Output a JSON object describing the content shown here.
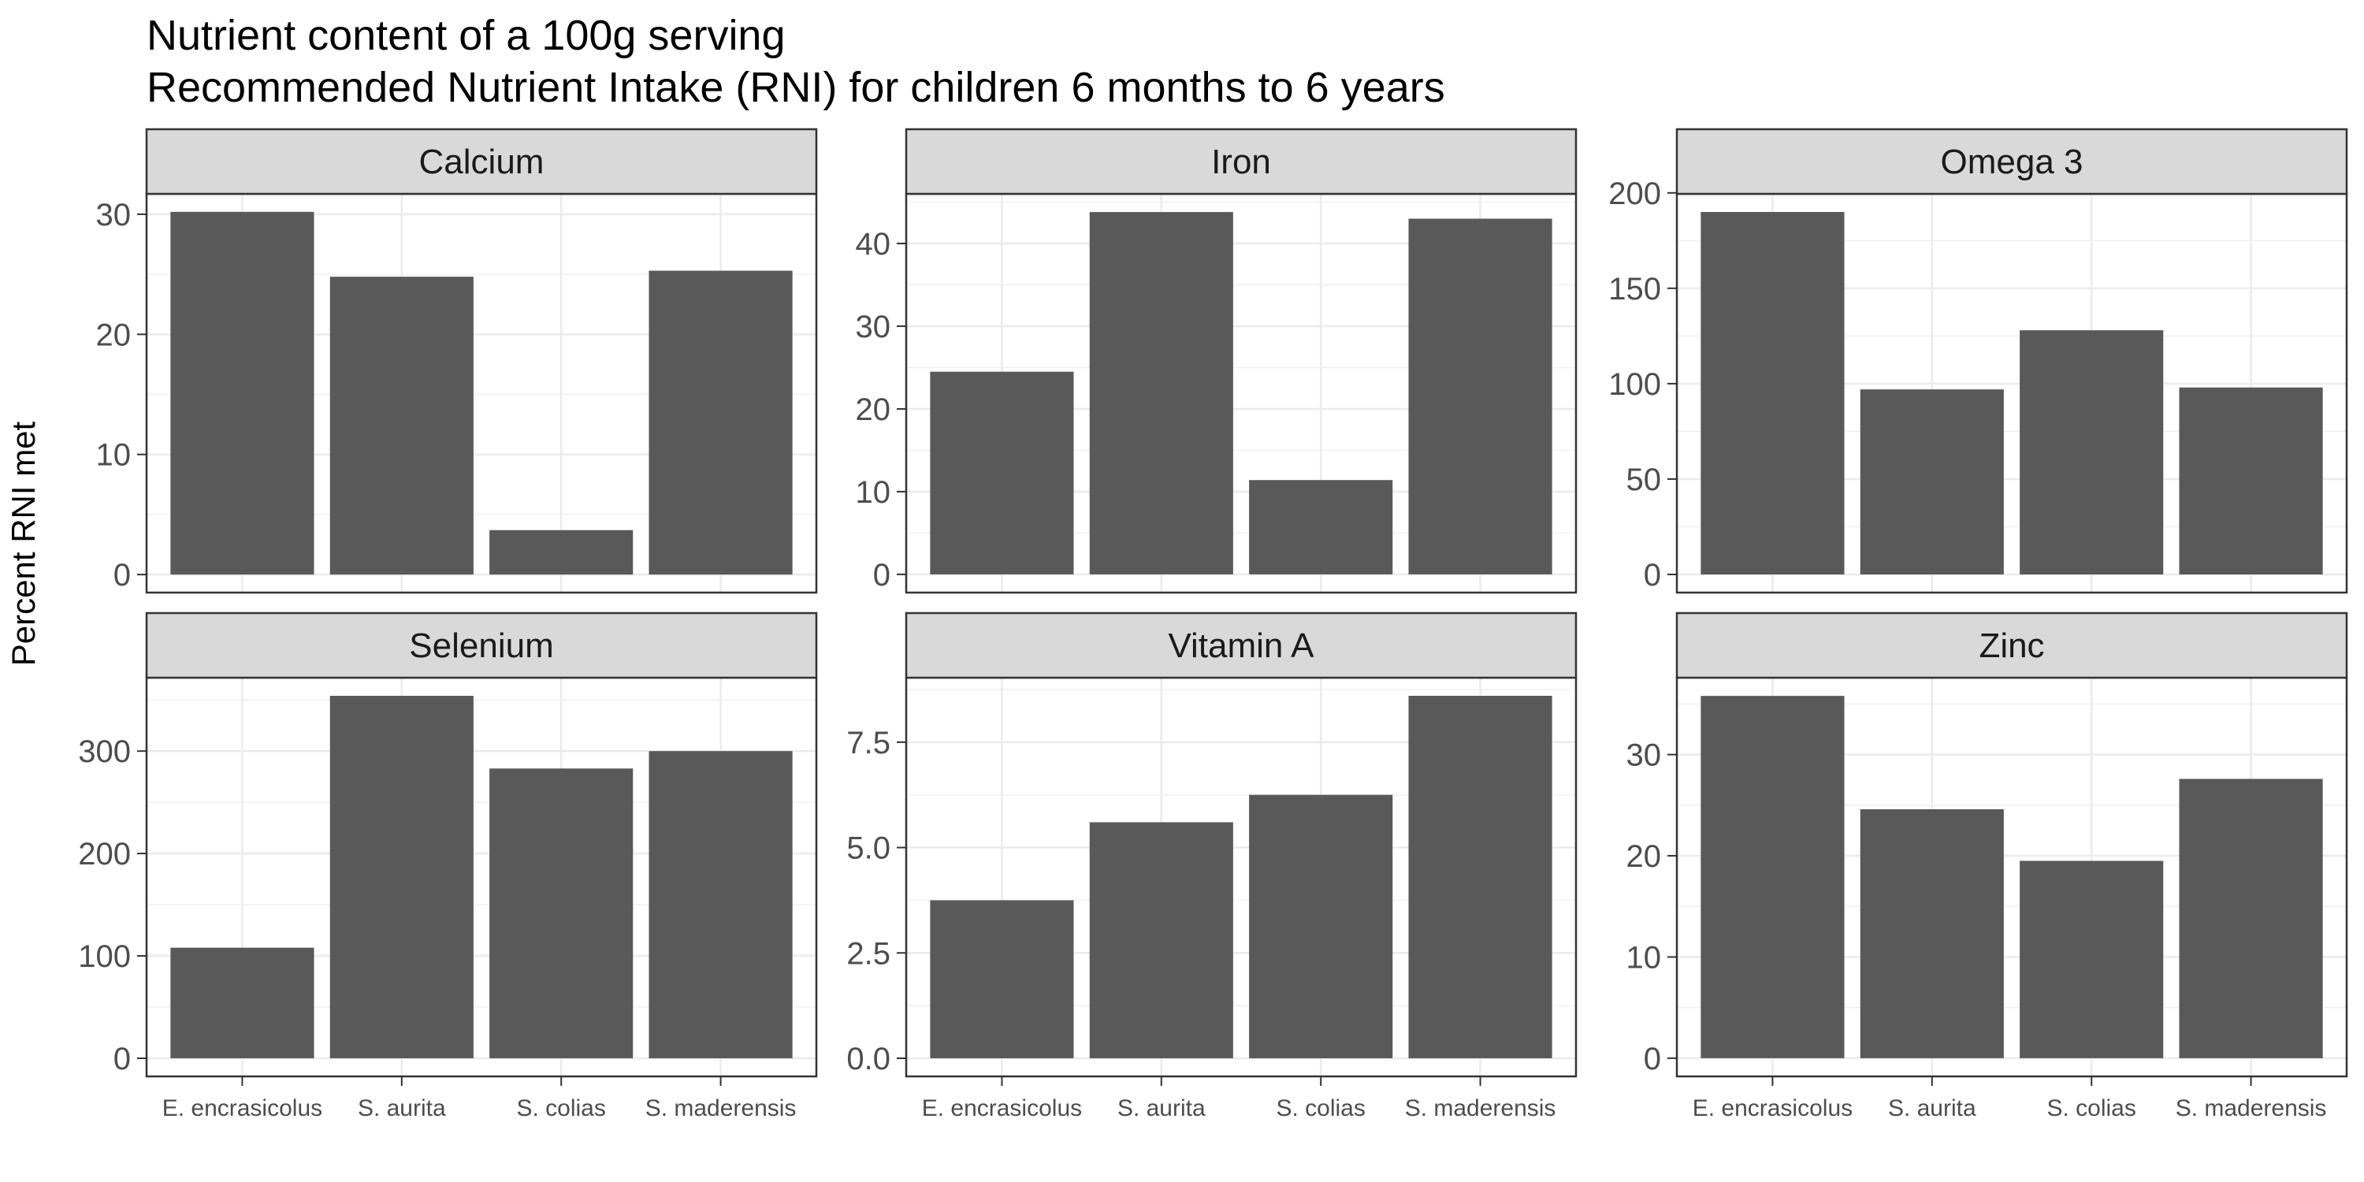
{
  "title_lines": [
    "Nutrient content of a 100g serving",
    "Recommended Nutrient Intake (RNI) for children 6 months to 6 years"
  ],
  "chart_data": {
    "type": "bar",
    "ylabel": "Percent RNI met",
    "categories": [
      "E. encrasicolus",
      "S. aurita",
      "S. colias",
      "S. maderensis"
    ],
    "bar_color": "#595959",
    "strip_color": "#d9d9d9",
    "grid": true,
    "facets": [
      {
        "name": "Calcium",
        "values": [
          30.2,
          24.8,
          3.7,
          25.3
        ],
        "ylim": [
          -1.5,
          31.7
        ],
        "ticks": [
          0,
          10,
          20,
          30
        ],
        "tick_labels": [
          "0",
          "10",
          "20",
          "30"
        ]
      },
      {
        "name": "Iron",
        "values": [
          24.5,
          43.8,
          11.4,
          43.0
        ],
        "ylim": [
          -2.2,
          46.0
        ],
        "ticks": [
          0,
          10,
          20,
          30,
          40
        ],
        "tick_labels": [
          "0",
          "10",
          "20",
          "30",
          "40"
        ]
      },
      {
        "name": "Omega 3",
        "values": [
          190,
          97,
          128,
          98
        ],
        "ylim": [
          -9.5,
          199.5
        ],
        "ticks": [
          0,
          50,
          100,
          150,
          200
        ],
        "tick_labels": [
          "0",
          "50",
          "100",
          "150",
          "200"
        ]
      },
      {
        "name": "Selenium",
        "values": [
          108,
          354,
          283,
          300
        ],
        "ylim": [
          -17.7,
          371.7
        ],
        "ticks": [
          0,
          100,
          200,
          300
        ],
        "tick_labels": [
          "0",
          "100",
          "200",
          "300"
        ]
      },
      {
        "name": "Vitamin A",
        "values": [
          3.75,
          5.6,
          6.25,
          8.6
        ],
        "ylim": [
          -0.43,
          9.03
        ],
        "ticks": [
          0,
          2.5,
          5.0,
          7.5
        ],
        "tick_labels": [
          "0.0",
          "2.5",
          "5.0",
          "7.5"
        ]
      },
      {
        "name": "Zinc",
        "values": [
          35.8,
          24.6,
          19.5,
          27.6
        ],
        "ylim": [
          -1.8,
          37.6
        ],
        "ticks": [
          0,
          10,
          20,
          30
        ],
        "tick_labels": [
          "0",
          "10",
          "20",
          "30"
        ]
      }
    ]
  }
}
